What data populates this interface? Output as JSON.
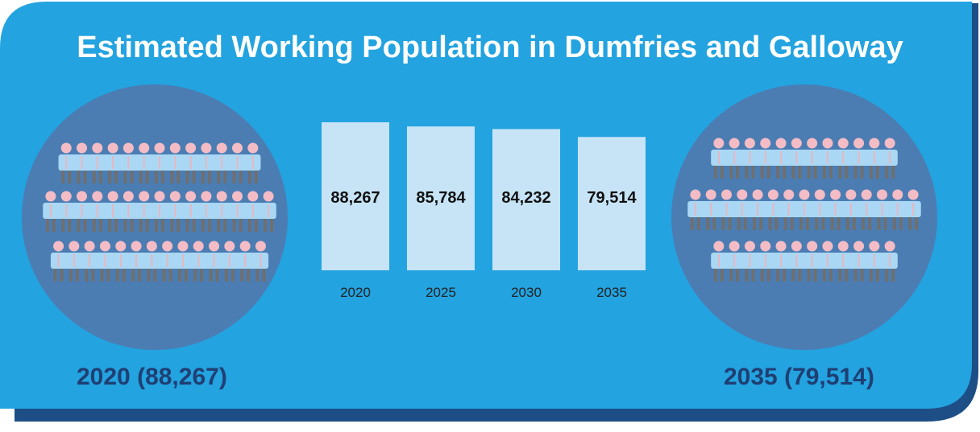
{
  "title": "Estimated Working Population in Dumfries and Galloway",
  "captions": {
    "left": "2020 (88,267)",
    "right": "2035 (79,514)"
  },
  "colors": {
    "background": "#23a3e0",
    "circle": "#4b7db3",
    "bar": "#c7e4f6",
    "dark_edge": "#1d4e86",
    "caption": "#1f3f73",
    "person_head": "#f4bcc5",
    "person_body": "#aad8f4",
    "person_legs": "#6f6f6f"
  },
  "chart_data": {
    "type": "bar",
    "categories": [
      "2020",
      "2025",
      "2030",
      "2035"
    ],
    "values": [
      88267,
      85784,
      84232,
      79514
    ],
    "value_labels": [
      "88,267",
      "85,784",
      "84,232",
      "79,514"
    ],
    "title": "Estimated Working Population in Dumfries and Galloway",
    "xlabel": "",
    "ylabel": "",
    "grid": false,
    "legend": "none"
  },
  "pictograms": {
    "left": {
      "icon": "people-crowd-icon",
      "rows": [
        13,
        15,
        14
      ]
    },
    "right": {
      "icon": "people-crowd-icon",
      "rows": [
        12,
        15,
        12
      ]
    }
  }
}
